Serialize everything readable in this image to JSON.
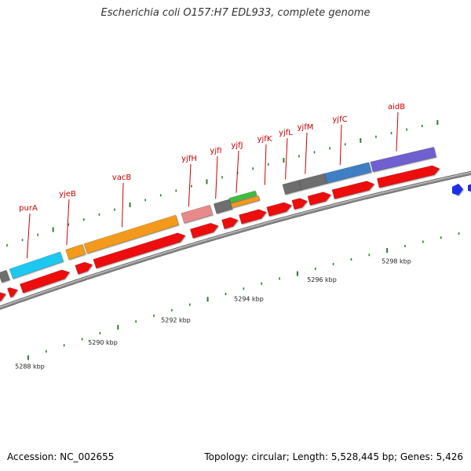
{
  "title": "Escherichia coli O157:H7 EDL933, complete genome",
  "footer": {
    "accession": "Accession: NC_002655",
    "summary": "Topology: circular; Length: 5,528,445 bp; Genes: 5,426"
  },
  "colors": {
    "backbone": "#8c8c8c",
    "gene_label": "#cc0000",
    "tick": "#2e7d32",
    "cds_red": "#ee1111",
    "blue_feature": "#1a2ee6"
  },
  "axis": {
    "ticks_kbp": [
      5288,
      5290,
      5292,
      5294,
      5296,
      5298
    ],
    "tick_labels": [
      "5288 kbp",
      "5290 kbp",
      "5292 kbp",
      "5294 kbp",
      "5296 kbp",
      "5298 kbp"
    ]
  },
  "genes": [
    {
      "name": "purA",
      "color": "#1ec8f0"
    },
    {
      "name": "yjeB",
      "color": "#f39a1a"
    },
    {
      "name": "vacB",
      "color": "#f39a1a"
    },
    {
      "name": "yjfH",
      "color": "#e88a8a"
    },
    {
      "name": "yjfI",
      "color": "#6e6e6e"
    },
    {
      "name": "yjfJ",
      "color": "#f39a1a"
    },
    {
      "name": "yjfK",
      "color": "#ee1111"
    },
    {
      "name": "yjfL",
      "color": "#ee1111"
    },
    {
      "name": "yjfM",
      "color": "#6e6e6e"
    },
    {
      "name": "yjfC",
      "color": "#3f7fc4"
    },
    {
      "name": "aidB",
      "color": "#6f5fd0"
    }
  ]
}
